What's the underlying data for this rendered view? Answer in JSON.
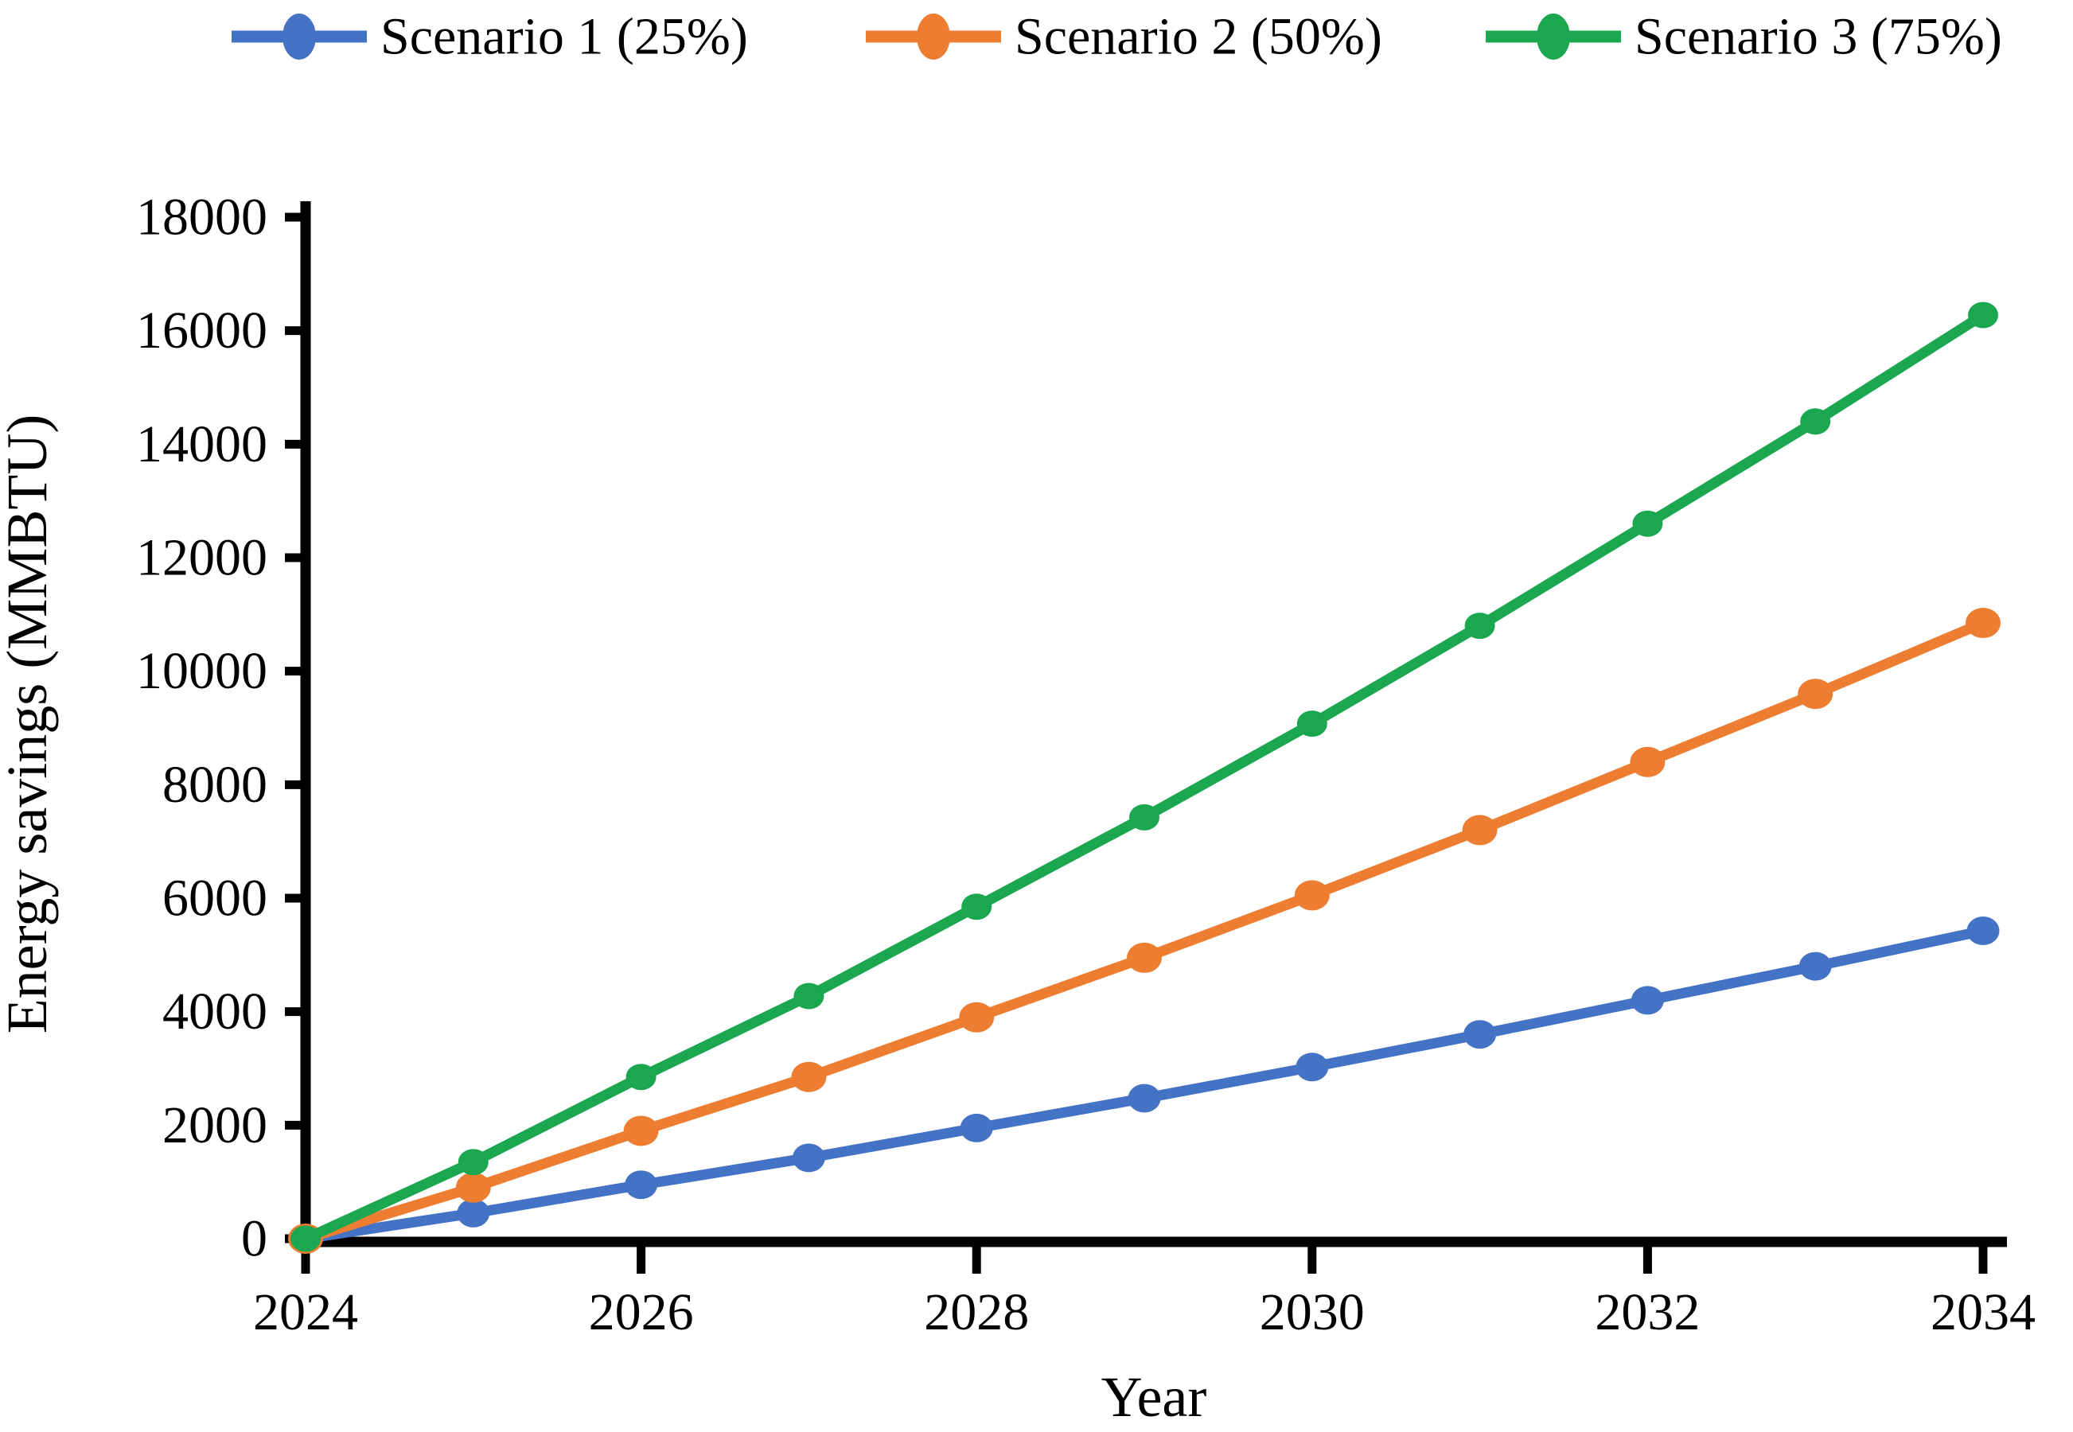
{
  "chart_data": {
    "type": "line",
    "title": "",
    "xlabel": "Year",
    "ylabel": "Energy savings (MMBTU)",
    "x": [
      2024,
      2025,
      2026,
      2027,
      2028,
      2029,
      2030,
      2031,
      2032,
      2033,
      2034
    ],
    "xticks": [
      2024,
      2026,
      2028,
      2030,
      2032,
      2034
    ],
    "ylim": [
      0,
      18000
    ],
    "yticks": [
      0,
      2000,
      4000,
      6000,
      8000,
      10000,
      12000,
      14000,
      16000,
      18000
    ],
    "grid": false,
    "legend_position": "top-center",
    "marker_style": "filled-circle",
    "series": [
      {
        "name": "Scenario 1 (25%)",
        "color": "#4472C4",
        "values": [
          0,
          450,
          950,
          1425,
          1950,
          2475,
          3025,
          3600,
          4200,
          4800,
          5425
        ]
      },
      {
        "name": "Scenario 2 (50%)",
        "color": "#ED7D31",
        "values": [
          0,
          900,
          1900,
          2850,
          3900,
          4950,
          6050,
          7200,
          8400,
          9600,
          10850
        ]
      },
      {
        "name": "Scenario 3 (75%)",
        "color": "#1AA74F",
        "values": [
          0,
          1350,
          2850,
          4275,
          5850,
          7425,
          9075,
          10800,
          12600,
          14400,
          16275
        ]
      }
    ]
  }
}
